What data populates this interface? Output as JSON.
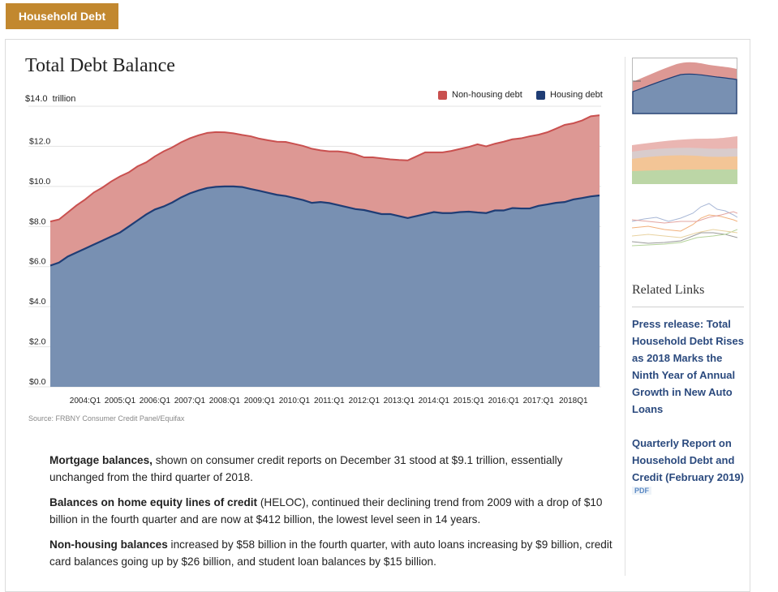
{
  "tab_label": "Household Debt",
  "title": "Total Debt Balance",
  "unit_label": "trillion",
  "source": "Source: FRBNY Consumer Credit Panel/Equifax",
  "colors": {
    "tab": "#c2882f",
    "nonhousing": "#dd9894",
    "nonhousing_line": "#c9504f",
    "housing": "#7890b2",
    "housing_line": "#1f3d75",
    "link": "#2b4a7e"
  },
  "chart_data": {
    "type": "area",
    "stacked": true,
    "title": "Total Debt Balance",
    "ylabel": "$14.0 trillion",
    "ylim": [
      0,
      14
    ],
    "y_ticks": [
      "$0.0",
      "$2.0",
      "$4.0",
      "$6.0",
      "$8.0",
      "$10.0",
      "$12.0",
      "$14.0"
    ],
    "x_ticks": [
      "2004:Q1",
      "2005:Q1",
      "2006:Q1",
      "2007:Q1",
      "2008:Q1",
      "2009:Q1",
      "2010:Q1",
      "2011:Q1",
      "2012:Q1",
      "2013:Q1",
      "2014:Q1",
      "2015:Q1",
      "2016:Q1",
      "2017:Q1",
      "2018Q1"
    ],
    "legend": [
      "Non-housing debt",
      "Housing debt"
    ],
    "legend_position": "top-right",
    "grid": true,
    "x": [
      "2003:Q1",
      "2003:Q2",
      "2003:Q3",
      "2003:Q4",
      "2004:Q1",
      "2004:Q2",
      "2004:Q3",
      "2004:Q4",
      "2005:Q1",
      "2005:Q2",
      "2005:Q3",
      "2005:Q4",
      "2006:Q1",
      "2006:Q2",
      "2006:Q3",
      "2006:Q4",
      "2007:Q1",
      "2007:Q2",
      "2007:Q3",
      "2007:Q4",
      "2008:Q1",
      "2008:Q2",
      "2008:Q3",
      "2008:Q4",
      "2009:Q1",
      "2009:Q2",
      "2009:Q3",
      "2009:Q4",
      "2010:Q1",
      "2010:Q2",
      "2010:Q3",
      "2010:Q4",
      "2011:Q1",
      "2011:Q2",
      "2011:Q3",
      "2011:Q4",
      "2012:Q1",
      "2012:Q2",
      "2012:Q3",
      "2012:Q4",
      "2013:Q1",
      "2013:Q2",
      "2013:Q3",
      "2013:Q4",
      "2014:Q1",
      "2014:Q2",
      "2014:Q3",
      "2014:Q4",
      "2015:Q1",
      "2015:Q2",
      "2015:Q3",
      "2015:Q4",
      "2016:Q1",
      "2016:Q2",
      "2016:Q3",
      "2016:Q4",
      "2017:Q1",
      "2017:Q2",
      "2017:Q3",
      "2017:Q4",
      "2018:Q1",
      "2018:Q2",
      "2018:Q3",
      "2018:Q4"
    ],
    "series": [
      {
        "name": "Housing debt",
        "values": [
          6.05,
          6.2,
          6.5,
          6.7,
          6.9,
          7.1,
          7.3,
          7.5,
          7.7,
          8.0,
          8.3,
          8.6,
          8.85,
          9.0,
          9.2,
          9.45,
          9.65,
          9.8,
          9.92,
          9.98,
          10.0,
          10.0,
          9.97,
          9.87,
          9.78,
          9.68,
          9.58,
          9.52,
          9.42,
          9.32,
          9.18,
          9.22,
          9.17,
          9.07,
          8.97,
          8.87,
          8.82,
          8.72,
          8.62,
          8.62,
          8.52,
          8.42,
          8.52,
          8.62,
          8.72,
          8.67,
          8.67,
          8.72,
          8.74,
          8.7,
          8.67,
          8.8,
          8.8,
          8.92,
          8.9,
          8.9,
          9.03,
          9.1,
          9.18,
          9.22,
          9.35,
          9.42,
          9.5,
          9.55
        ]
      },
      {
        "name": "Non-housing debt",
        "values": [
          2.2,
          2.15,
          2.2,
          2.35,
          2.45,
          2.6,
          2.65,
          2.75,
          2.8,
          2.7,
          2.7,
          2.6,
          2.65,
          2.75,
          2.75,
          2.75,
          2.75,
          2.75,
          2.75,
          2.73,
          2.7,
          2.65,
          2.6,
          2.63,
          2.6,
          2.62,
          2.65,
          2.7,
          2.7,
          2.7,
          2.7,
          2.58,
          2.58,
          2.68,
          2.73,
          2.73,
          2.63,
          2.73,
          2.78,
          2.73,
          2.8,
          2.88,
          2.98,
          3.08,
          2.98,
          3.03,
          3.1,
          3.15,
          3.23,
          3.4,
          3.33,
          3.33,
          3.43,
          3.43,
          3.5,
          3.6,
          3.55,
          3.6,
          3.7,
          3.85,
          3.8,
          3.87,
          4.0,
          4.0
        ]
      }
    ]
  },
  "paragraphs": [
    {
      "bold": "Mortgage balances,",
      "text": " shown on consumer credit reports on December 31 stood at $9.1 trillion, essentially unchanged from the third quarter of 2018."
    },
    {
      "bold": "Balances on home equity lines of credit",
      "text": " (HELOC), continued their declining trend from 2009 with a drop of $10 billion in the fourth quarter and are now at $412 billion, the lowest level seen in 14 years."
    },
    {
      "bold": "Non-housing balances",
      "text": " increased by $58 billion in the fourth quarter, with auto loans increasing by $9 billion, credit card balances going up by $26 billion, and student loan balances by $15 billion."
    }
  ],
  "sidebar": {
    "related_title": "Related Links",
    "links": [
      "Press release: Total Household Debt Rises as 2018 Marks the Ninth Year of Annual Growth in New Auto Loans",
      "Quarterly Report on Household Debt and Credit (February 2019)"
    ],
    "pdf_badge": "PDF"
  }
}
